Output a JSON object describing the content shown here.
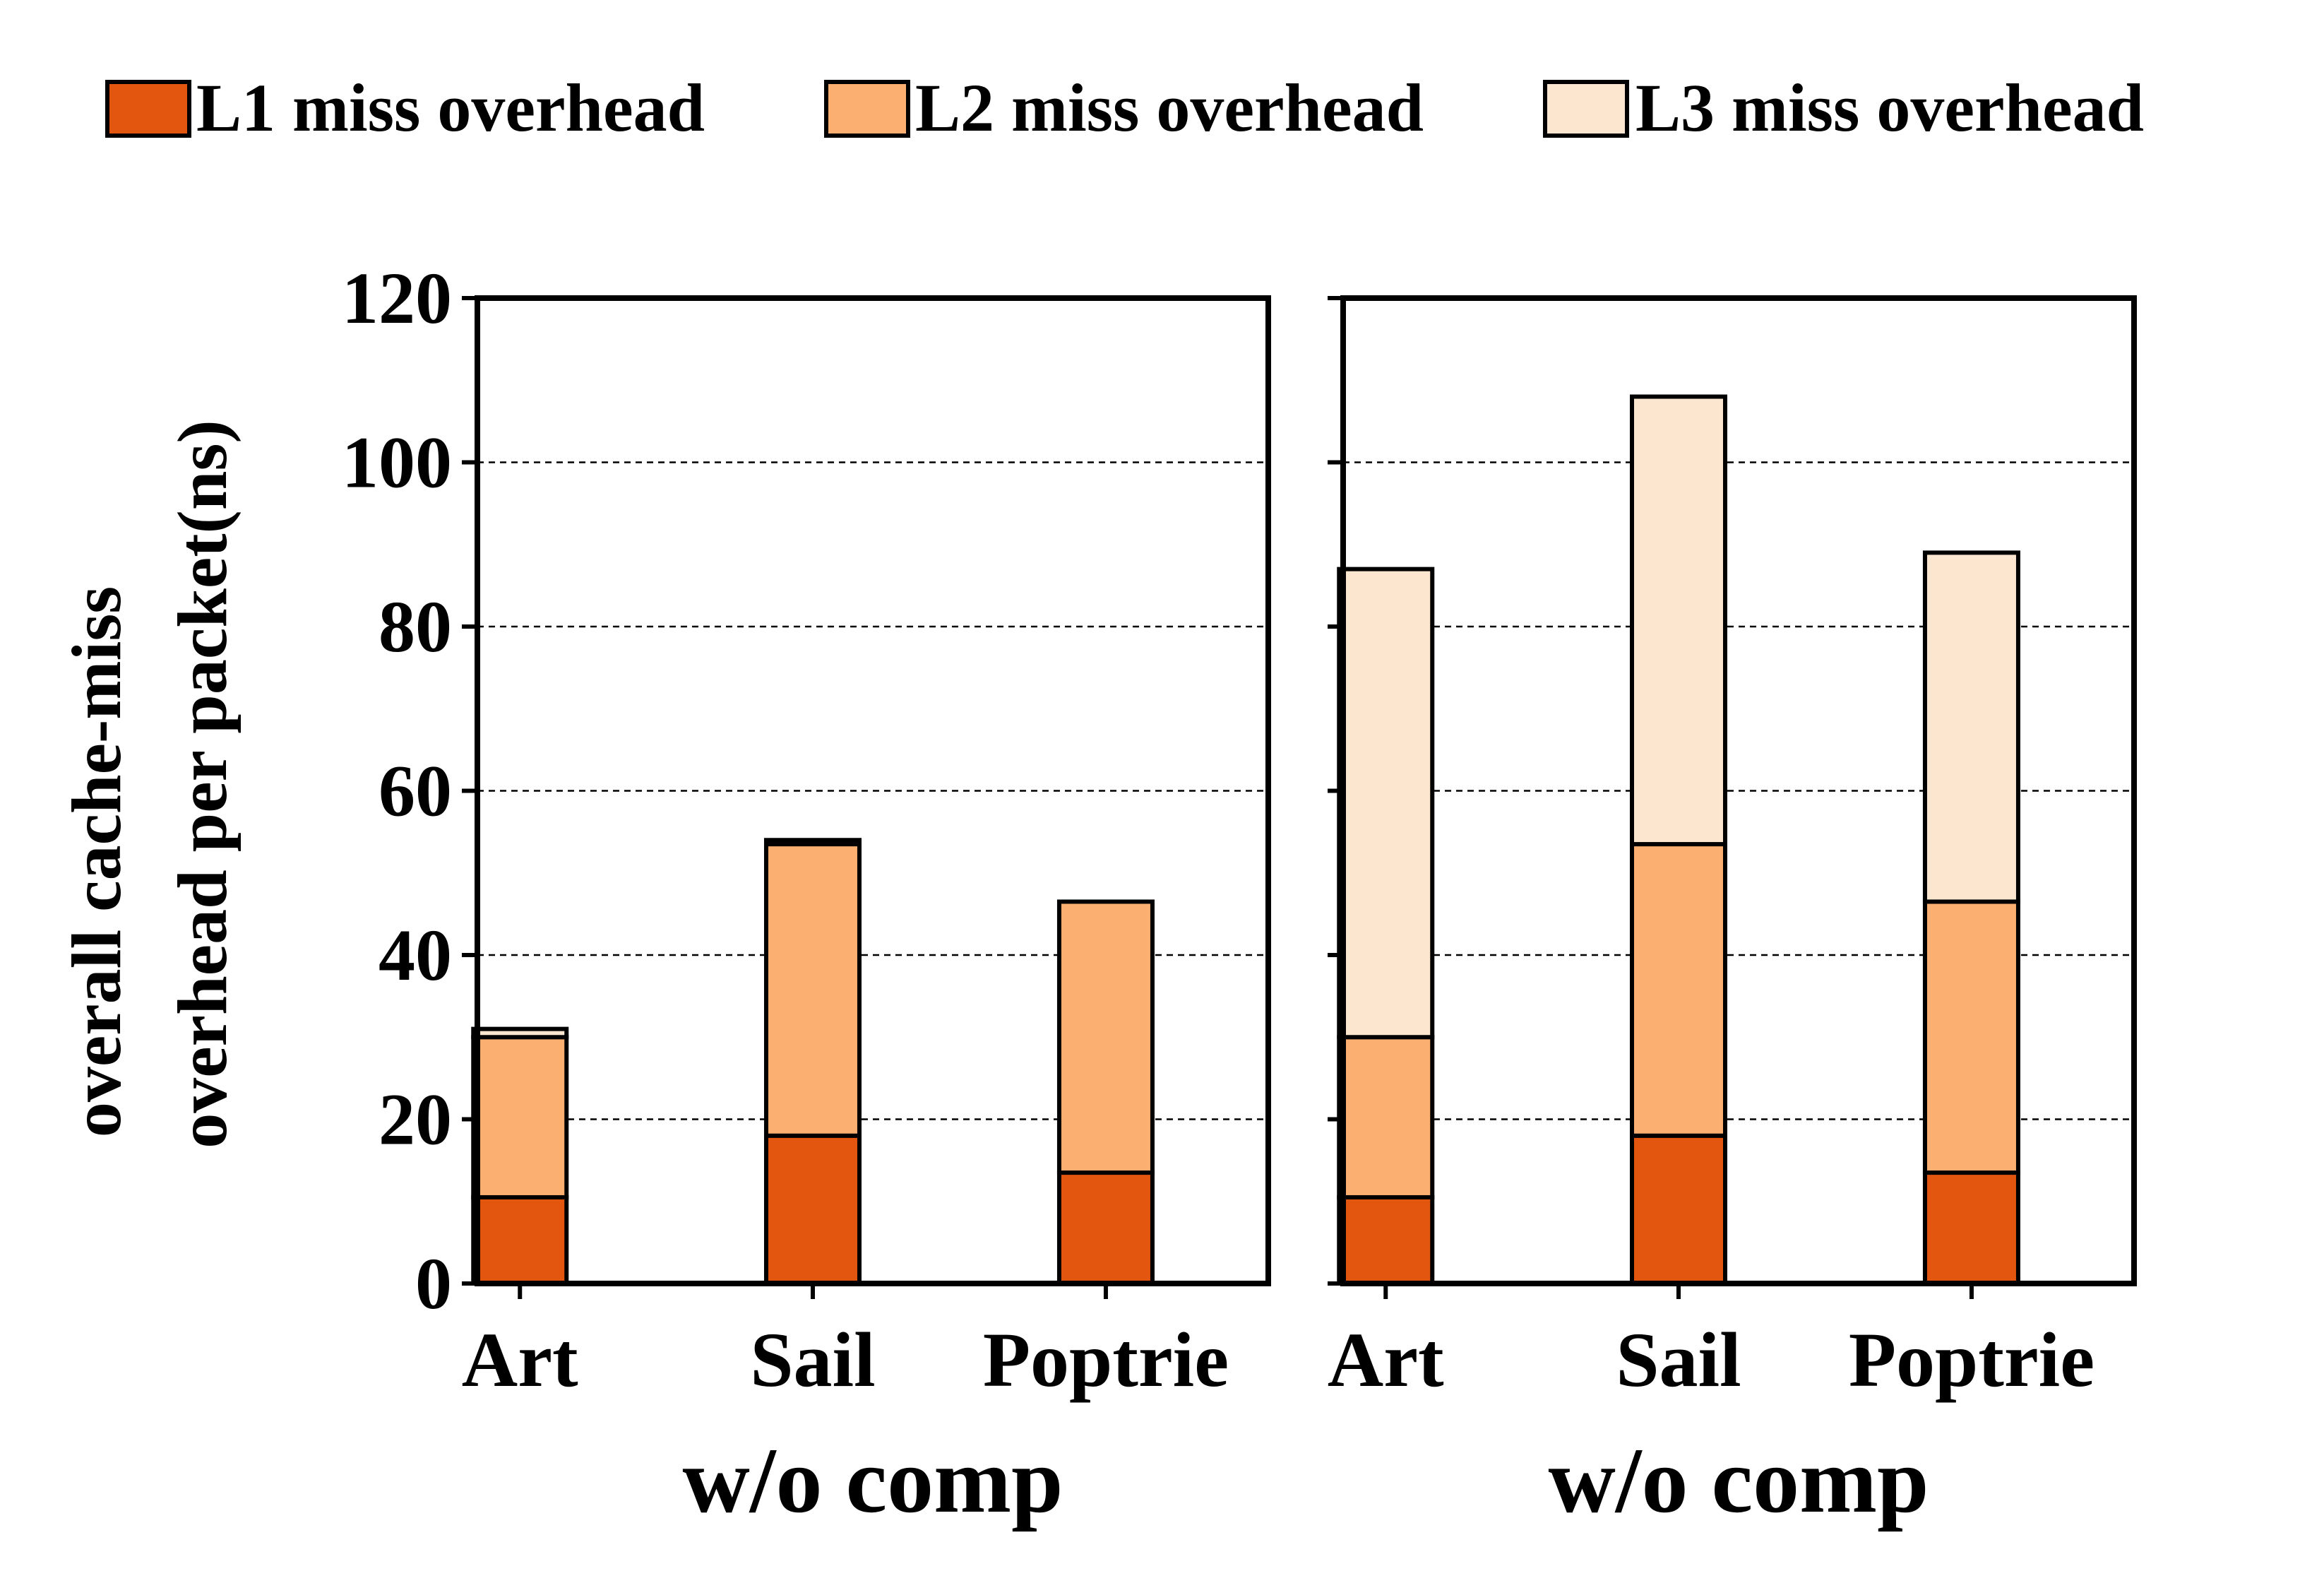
{
  "legend": {
    "placement": "top",
    "items": [
      {
        "label": "L1 miss overhead",
        "color": "#e35610"
      },
      {
        "label": "L2 miss overhead",
        "color": "#fbb071"
      },
      {
        "label": "L3 miss overhead",
        "color": "#fde6cf"
      }
    ]
  },
  "ylabel_lines": [
    "overall cache-miss",
    "overhead per packet(ns)"
  ],
  "chart_data": [
    {
      "type": "bar",
      "stacked": true,
      "categories": [
        "Art",
        "Sail",
        "Poptrie"
      ],
      "xlabel": "w/o comp",
      "ylabel": "overall cache-miss overhead per packet(ns)",
      "ylim": [
        0,
        120
      ],
      "yticks": [
        0,
        20,
        40,
        60,
        80,
        100,
        120
      ],
      "grid": "y dashed",
      "series": [
        {
          "name": "L1 miss overhead",
          "values": [
            10.5,
            18,
            13.5
          ]
        },
        {
          "name": "L2 miss overhead",
          "values": [
            19.5,
            35.5,
            33
          ]
        },
        {
          "name": "L3 miss overhead",
          "values": [
            1,
            0.5,
            0
          ]
        }
      ]
    },
    {
      "type": "bar",
      "stacked": true,
      "categories": [
        "Art",
        "Sail",
        "Poptrie"
      ],
      "xlabel": "w/o comp",
      "ylim": [
        0,
        120
      ],
      "yticks": [
        0,
        20,
        40,
        60,
        80,
        100,
        120
      ],
      "grid": "y dashed",
      "series": [
        {
          "name": "L1 miss overhead",
          "values": [
            10.5,
            18,
            13.5
          ]
        },
        {
          "name": "L2 miss overhead",
          "values": [
            19.5,
            35.5,
            33
          ]
        },
        {
          "name": "L3 miss overhead",
          "values": [
            57,
            54.5,
            42.5
          ]
        }
      ]
    }
  ]
}
